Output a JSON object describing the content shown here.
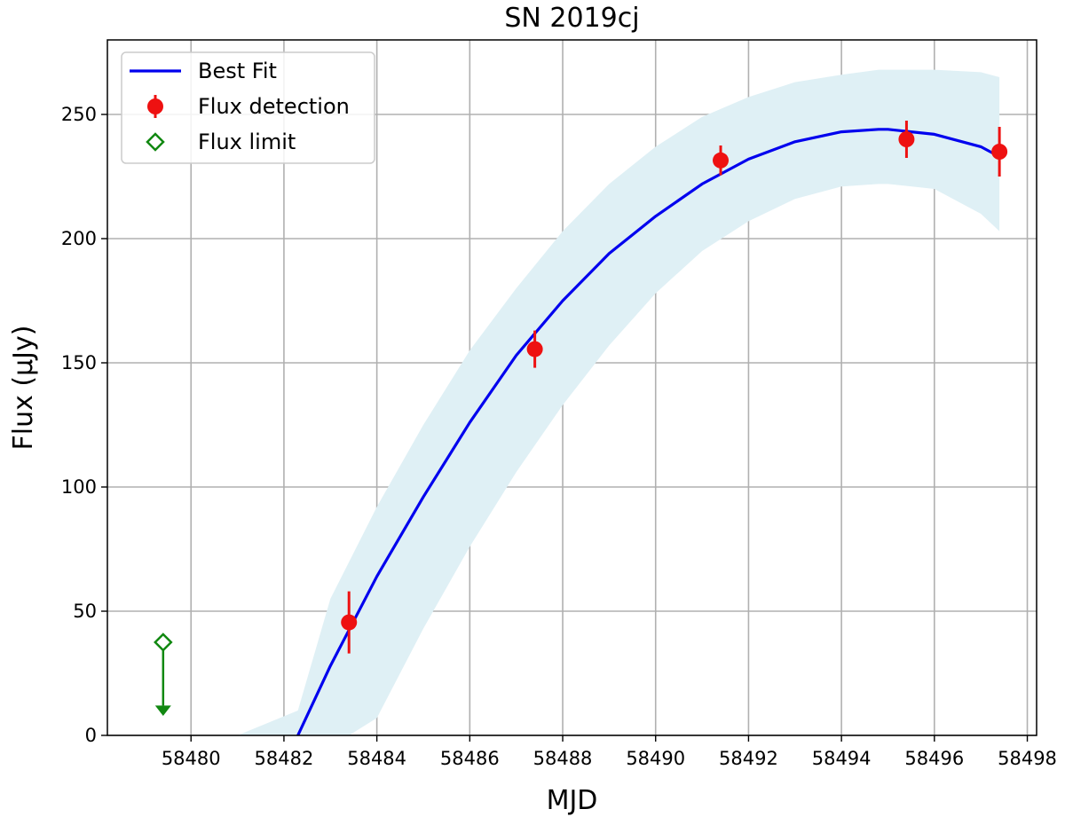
{
  "chart_data": {
    "type": "scatter",
    "title": "SN 2019cj",
    "xlabel": "MJD",
    "ylabel": "Flux (μJy)",
    "xlim": [
      58478.2,
      58498.2
    ],
    "ylim": [
      0,
      280
    ],
    "x_ticks": [
      58480,
      58482,
      58484,
      58486,
      58488,
      58490,
      58492,
      58494,
      58496,
      58498
    ],
    "y_ticks": [
      0,
      50,
      100,
      150,
      200,
      250
    ],
    "grid": true,
    "legend_position": "top-left",
    "series": [
      {
        "name": "Best Fit",
        "kind": "line",
        "color": "#0000ee",
        "x": [
          58482.3,
          58483,
          58484,
          58485,
          58486,
          58487,
          58488,
          58489,
          58490,
          58491,
          58492,
          58493,
          58494,
          58494.8,
          58495,
          58496,
          58497,
          58497.4
        ],
        "y": [
          0,
          28,
          64,
          96,
          126,
          153,
          175,
          194,
          209,
          222,
          232,
          239,
          243,
          244,
          244,
          242,
          237,
          233
        ],
        "band_lower": [
          null,
          null,
          7,
          43,
          76,
          106,
          133,
          157,
          178,
          195,
          207,
          216,
          221,
          222,
          222,
          220,
          210,
          203
        ],
        "band_upper": [
          10,
          55,
          92,
          125,
          155,
          180,
          203,
          222,
          237,
          249,
          257,
          263,
          266,
          268,
          268,
          268,
          267,
          265
        ],
        "band_x_start": 58481,
        "band_color": "#dff0f5"
      },
      {
        "name": "Flux detection",
        "kind": "errorbar",
        "color": "#ee1111",
        "x": [
          58483.4,
          58487.4,
          58491.4,
          58495.4,
          58497.4
        ],
        "y": [
          45.5,
          155.5,
          231.5,
          240,
          235
        ],
        "err": [
          12.5,
          7.5,
          6,
          7.5,
          10
        ]
      },
      {
        "name": "Flux limit",
        "kind": "upper_limit",
        "color": "#118811",
        "x": [
          58479.4
        ],
        "y": [
          37.5
        ]
      }
    ]
  }
}
